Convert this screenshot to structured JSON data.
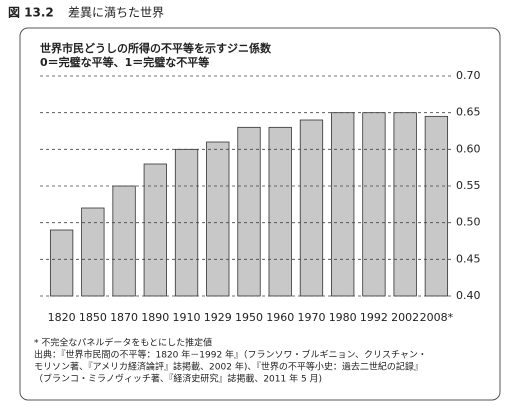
{
  "chart_data": {
    "type": "bar",
    "figure_label": "図 13.2",
    "caption": "差異に満ちた世界",
    "title": "世界市民どうしの所得の不平等を示すジニ係数",
    "subtitle": "0＝完璧な平等、1＝完璧な不平等",
    "categories": [
      "1820",
      "1850",
      "1870",
      "1890",
      "1910",
      "1929",
      "1950",
      "1960",
      "1970",
      "1980",
      "1992",
      "2002",
      "2008*"
    ],
    "values": [
      0.49,
      0.52,
      0.55,
      0.58,
      0.6,
      0.61,
      0.63,
      0.63,
      0.64,
      0.65,
      0.65,
      0.65,
      0.645
    ],
    "color": "#c8c8c8",
    "ylim": [
      0.4,
      0.7
    ],
    "yticks": [
      {
        "value": 0.4,
        "label": "0.40"
      },
      0.45,
      {
        "value": 0.5,
        "label": "0.50"
      },
      0.55,
      {
        "value": 0.6,
        "label": "0.60"
      },
      0.65,
      {
        "value": 0.7,
        "label": "0.70"
      }
    ],
    "grid": true,
    "notes": [
      "* 不完全なパネルデータをもとにした推定値",
      "出典：『世界市民間の不平等：1820 年－1992 年』（フランソワ・ブルギニョン、クリスチャン・",
      "モリソン著、『アメリカ経済論評』誌掲載、2002 年)、『世界の不平等小史：過去二世紀の記録』",
      "（ブランコ・ミラノヴィッチ著、『経済史研究』誌掲載、2011 年 5 月)"
    ]
  }
}
